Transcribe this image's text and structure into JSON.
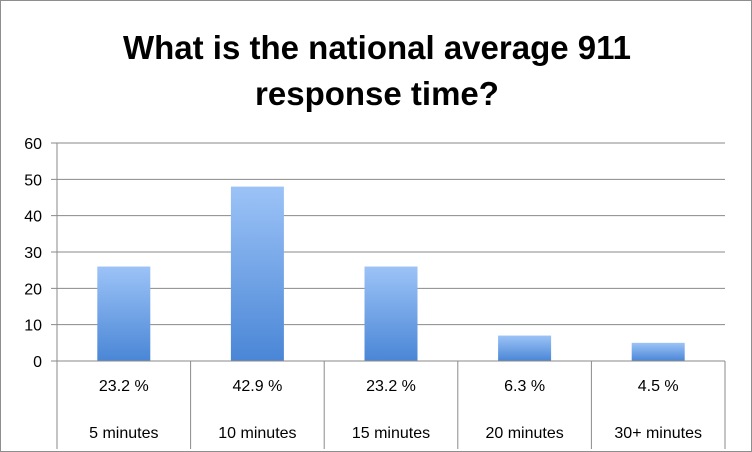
{
  "chart_data": {
    "type": "bar",
    "title_lines": [
      "What is the national average 911",
      "response time?"
    ],
    "categories": [
      "5 minutes",
      "10 minutes",
      "15 minutes",
      "20 minutes",
      "30+ minutes"
    ],
    "data_labels": [
      "23.2 %",
      "42.9 %",
      "23.2 %",
      "6.3 %",
      "4.5 %"
    ],
    "values": [
      26,
      48,
      26,
      7,
      5
    ],
    "ylim": [
      0,
      60
    ],
    "yticks": [
      "0",
      "10",
      "20",
      "30",
      "40",
      "50",
      "60"
    ],
    "grid": true,
    "legend": "none",
    "colors": {
      "bar_top": "#9cc3f7",
      "bar_bottom": "#4a86d6",
      "grid": "#8a8a8a",
      "axis": "#8a8a8a"
    }
  }
}
